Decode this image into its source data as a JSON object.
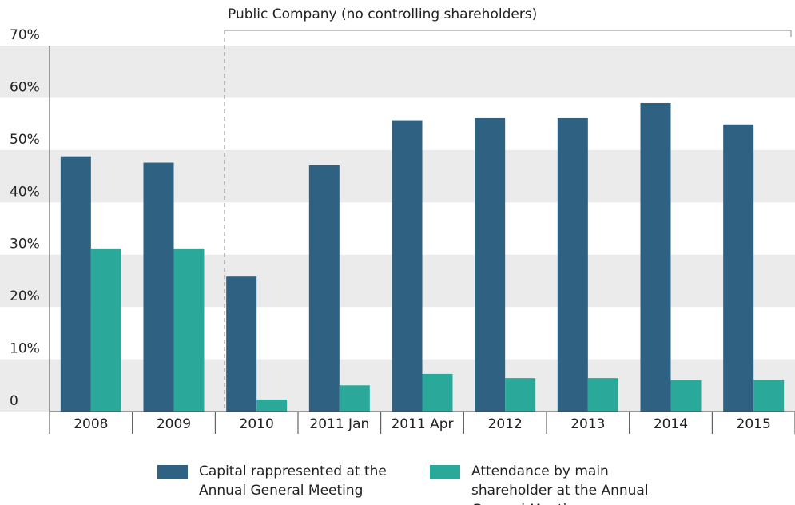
{
  "chart_data": {
    "type": "bar",
    "annotation": "Public Company (no controlling shareholders)",
    "categories": [
      "2008",
      "2009",
      "2010",
      "2011 Jan",
      "2011 Apr",
      "2012",
      "2013",
      "2014",
      "2015"
    ],
    "series": [
      {
        "name": "Capital rappresented at the Annual General Meeting",
        "color": "#2e6182",
        "values": [
          48.8,
          47.6,
          25.8,
          47.1,
          55.7,
          56.1,
          56.1,
          59.0,
          54.9
        ]
      },
      {
        "name": "Attendance by main shareholder at the Annual General Meeting",
        "color": "#2aa89a",
        "values": [
          31.2,
          31.2,
          2.3,
          5.0,
          7.2,
          6.4,
          6.4,
          6.0,
          6.1
        ]
      }
    ],
    "ylim": [
      0,
      70
    ],
    "yticks": [
      0,
      {
        "value": 10,
        "label": "10%"
      },
      {
        "value": 20,
        "label": "20%"
      },
      {
        "value": 30,
        "label": "30%"
      },
      {
        "value": 40,
        "label": "40%"
      },
      {
        "value": 50,
        "label": "50%"
      },
      {
        "value": 60,
        "label": "60%"
      },
      {
        "value": 70,
        "label": "70%"
      }
    ],
    "grid": true
  }
}
